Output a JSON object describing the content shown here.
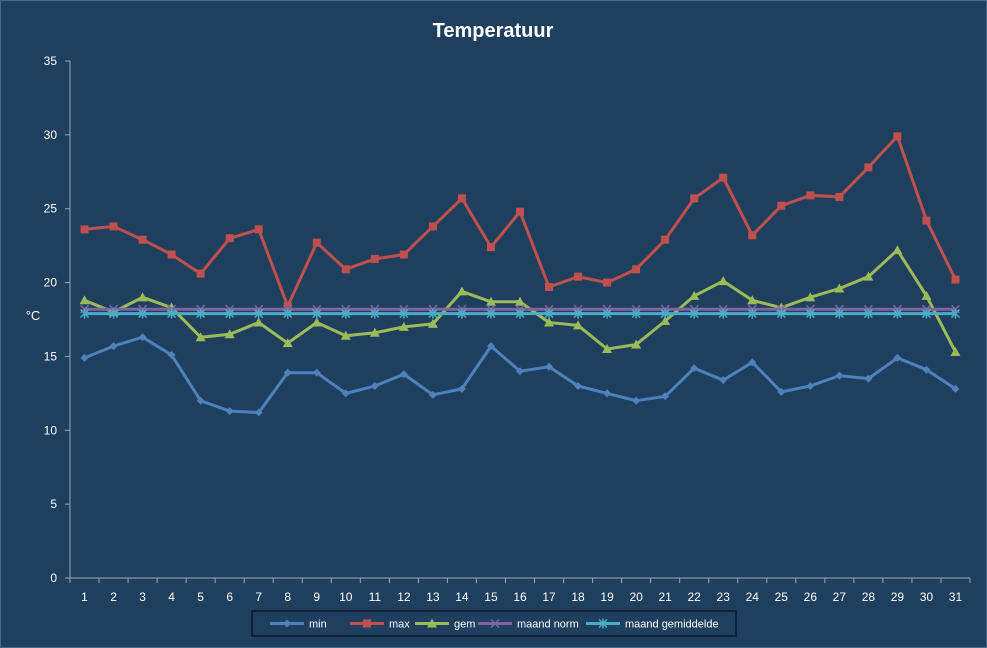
{
  "chart_data": {
    "type": "line",
    "title": "Temperatuur",
    "xlabel": "",
    "ylabel": "°C",
    "ylim": [
      0,
      35
    ],
    "yticks": [
      0,
      5,
      10,
      15,
      20,
      25,
      30,
      35
    ],
    "categories": [
      "1",
      "2",
      "3",
      "4",
      "5",
      "6",
      "7",
      "8",
      "9",
      "10",
      "11",
      "12",
      "13",
      "14",
      "15",
      "16",
      "17",
      "18",
      "19",
      "20",
      "21",
      "22",
      "23",
      "24",
      "25",
      "26",
      "27",
      "28",
      "29",
      "30",
      "31"
    ],
    "grid": false,
    "legend_position": "bottom",
    "series": [
      {
        "name": "min",
        "color": "#4f81bd",
        "marker": "diamond",
        "values": [
          14.9,
          15.7,
          16.3,
          15.1,
          12.0,
          11.3,
          11.2,
          13.9,
          13.9,
          12.5,
          13.0,
          13.8,
          12.4,
          12.8,
          15.7,
          14.0,
          14.3,
          13.0,
          12.5,
          12.0,
          12.3,
          14.2,
          13.4,
          14.6,
          12.6,
          13.0,
          13.7,
          13.5,
          14.9,
          14.1,
          12.8
        ]
      },
      {
        "name": "max",
        "color": "#c0504d",
        "marker": "square",
        "values": [
          23.6,
          23.8,
          22.9,
          21.9,
          20.6,
          23.0,
          23.6,
          18.4,
          22.7,
          20.9,
          21.6,
          21.9,
          23.8,
          25.7,
          22.4,
          24.8,
          19.7,
          20.4,
          20.0,
          20.9,
          22.9,
          25.7,
          27.1,
          23.2,
          25.2,
          25.9,
          25.8,
          27.8,
          29.9,
          24.2,
          20.2
        ]
      },
      {
        "name": "gem",
        "color": "#9bbb59",
        "marker": "triangle",
        "values": [
          18.8,
          18.0,
          19.0,
          18.3,
          16.3,
          16.5,
          17.3,
          15.9,
          17.3,
          16.4,
          16.6,
          17.0,
          17.2,
          19.4,
          18.7,
          18.7,
          17.3,
          17.1,
          15.5,
          15.8,
          17.4,
          19.1,
          20.1,
          18.8,
          18.3,
          19.0,
          19.6,
          20.4,
          22.2,
          19.1,
          15.3
        ]
      },
      {
        "name": "maand norm",
        "color": "#8064a2",
        "marker": "x",
        "values": [
          18.2,
          18.2,
          18.2,
          18.2,
          18.2,
          18.2,
          18.2,
          18.2,
          18.2,
          18.2,
          18.2,
          18.2,
          18.2,
          18.2,
          18.2,
          18.2,
          18.2,
          18.2,
          18.2,
          18.2,
          18.2,
          18.2,
          18.2,
          18.2,
          18.2,
          18.2,
          18.2,
          18.2,
          18.2,
          18.2,
          18.2
        ]
      },
      {
        "name": "maand gemiddelde",
        "color": "#4bacc6",
        "marker": "star",
        "values": [
          17.9,
          17.9,
          17.9,
          17.9,
          17.9,
          17.9,
          17.9,
          17.9,
          17.9,
          17.9,
          17.9,
          17.9,
          17.9,
          17.9,
          17.9,
          17.9,
          17.9,
          17.9,
          17.9,
          17.9,
          17.9,
          17.9,
          17.9,
          17.9,
          17.9,
          17.9,
          17.9,
          17.9,
          17.9,
          17.9,
          17.9
        ]
      }
    ]
  }
}
